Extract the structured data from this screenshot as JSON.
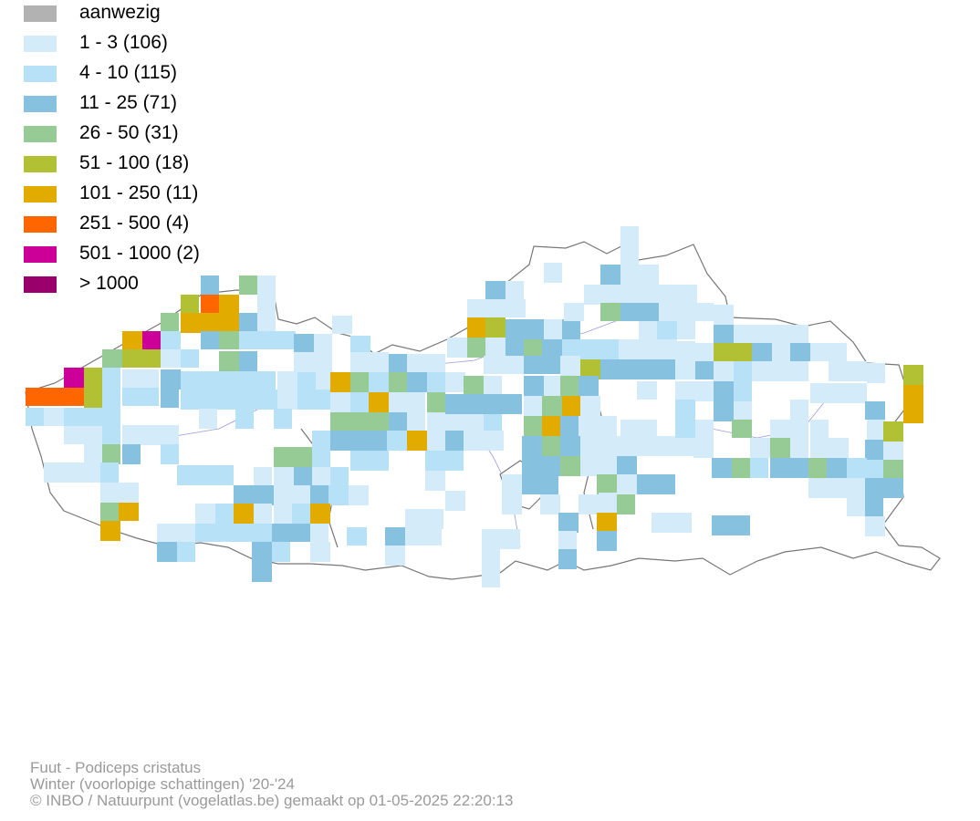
{
  "legend": [
    {
      "label": "aanwezig",
      "color": "#b2b2b2"
    },
    {
      "label": "1 - 3 (106)",
      "color": "#d4ecfa"
    },
    {
      "label": "4 - 10 (115)",
      "color": "#b6e1f7"
    },
    {
      "label": "11 - 25 (71)",
      "color": "#86c1e0"
    },
    {
      "label": "26 - 50 (31)",
      "color": "#97cb95"
    },
    {
      "label": "51 - 100 (18)",
      "color": "#b2c134"
    },
    {
      "label": "101 - 250 (11)",
      "color": "#e2ab00"
    },
    {
      "label": "251 - 500 (4)",
      "color": "#ff6600"
    },
    {
      "label": "501 - 1000 (2)",
      "color": "#cc0099"
    },
    {
      "label": "> 1000",
      "color": "#99006b"
    }
  ],
  "footer": {
    "species": "Fuut - Podiceps cristatus",
    "season": "Winter (voorlopige schattingen) '20-'24",
    "credit": "© INBO / Natuurpunt (vogelatlas.be) gemaakt op 01-05-2025 22:20:13"
  }
}
